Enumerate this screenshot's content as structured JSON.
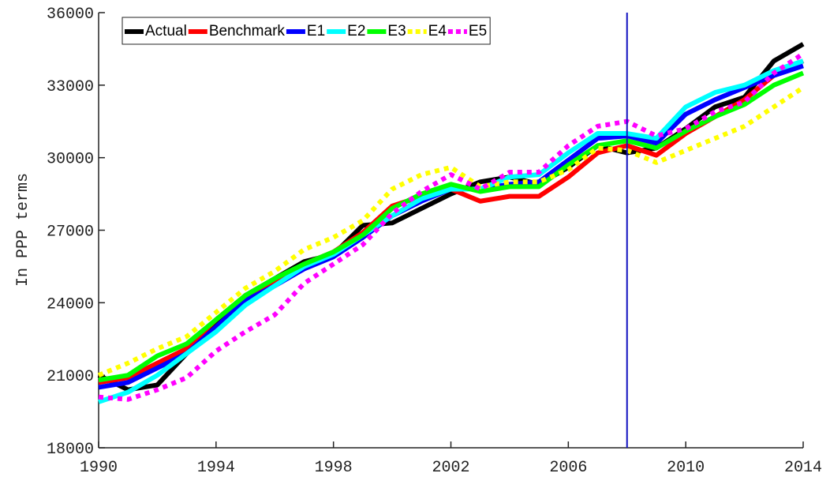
{
  "chart_data": {
    "type": "line",
    "ylabel": "In PPP terms",
    "x": [
      1990,
      1991,
      1992,
      1993,
      1994,
      1995,
      1996,
      1997,
      1998,
      1999,
      2000,
      2001,
      2002,
      2003,
      2004,
      2005,
      2006,
      2007,
      2008,
      2009,
      2010,
      2011,
      2012,
      2013,
      2014
    ],
    "series": [
      {
        "name": "Actual",
        "color": "#000000",
        "linestyle": "solid",
        "values": [
          21000,
          20400,
          20600,
          21900,
          23200,
          24300,
          25000,
          25700,
          26000,
          27200,
          27300,
          27900,
          28500,
          29000,
          29200,
          28900,
          29600,
          30500,
          30200,
          30400,
          31200,
          32100,
          32500,
          34000,
          34700
        ]
      },
      {
        "name": "Benchmark",
        "color": "#ff0000",
        "linestyle": "solid",
        "values": [
          20700,
          20900,
          21500,
          22100,
          23300,
          24300,
          24900,
          25600,
          26100,
          26900,
          28000,
          28400,
          28700,
          28200,
          28400,
          28400,
          29200,
          30200,
          30500,
          30100,
          31000,
          31700,
          32400,
          33400,
          34000
        ]
      },
      {
        "name": "E1",
        "color": "#0000ff",
        "linestyle": "solid",
        "values": [
          20500,
          20700,
          21300,
          21900,
          23000,
          24100,
          24700,
          25400,
          25900,
          26700,
          27600,
          28200,
          28700,
          28700,
          28900,
          29000,
          29900,
          30800,
          30900,
          30600,
          31800,
          32400,
          32900,
          33400,
          33800
        ]
      },
      {
        "name": "E2",
        "color": "#00ffff",
        "linestyle": "solid",
        "values": [
          19900,
          20300,
          21000,
          21900,
          22800,
          23900,
          24700,
          25500,
          26000,
          26800,
          27600,
          28300,
          28700,
          28700,
          29200,
          29300,
          30200,
          31000,
          31000,
          30800,
          32100,
          32700,
          33000,
          33600,
          34000
        ]
      },
      {
        "name": "E3",
        "color": "#00ff00",
        "linestyle": "solid",
        "values": [
          20800,
          21000,
          21800,
          22300,
          23300,
          24300,
          25000,
          25600,
          26100,
          26800,
          27900,
          28500,
          28900,
          28600,
          28800,
          28800,
          29700,
          30500,
          30700,
          30400,
          31100,
          31700,
          32200,
          33000,
          33500
        ]
      },
      {
        "name": "E4",
        "color": "#ffff00",
        "linestyle": "dotted",
        "values": [
          21000,
          21500,
          22100,
          22600,
          23600,
          24600,
          25300,
          26200,
          26700,
          27400,
          28700,
          29300,
          29600,
          28800,
          29000,
          29000,
          29500,
          30400,
          30300,
          29800,
          30300,
          30800,
          31300,
          32100,
          32900
        ]
      },
      {
        "name": "E5",
        "color": "#ff00ff",
        "linestyle": "dotted",
        "values": [
          20100,
          20000,
          20400,
          20900,
          22000,
          22800,
          23500,
          24800,
          25600,
          26400,
          27700,
          28600,
          29300,
          28700,
          29400,
          29400,
          30500,
          31300,
          31500,
          30900,
          31200,
          31900,
          32300,
          33500,
          34300
        ]
      }
    ],
    "vline": 2008,
    "vline_color": "#1010c0",
    "xlim": [
      1990,
      2014
    ],
    "xticks": [
      1990,
      1994,
      1998,
      2002,
      2006,
      2010,
      2014
    ],
    "ylim": [
      18000,
      36000
    ],
    "yticks": [
      18000,
      21000,
      24000,
      27000,
      30000,
      33000,
      36000
    ],
    "legend": "upper left"
  }
}
